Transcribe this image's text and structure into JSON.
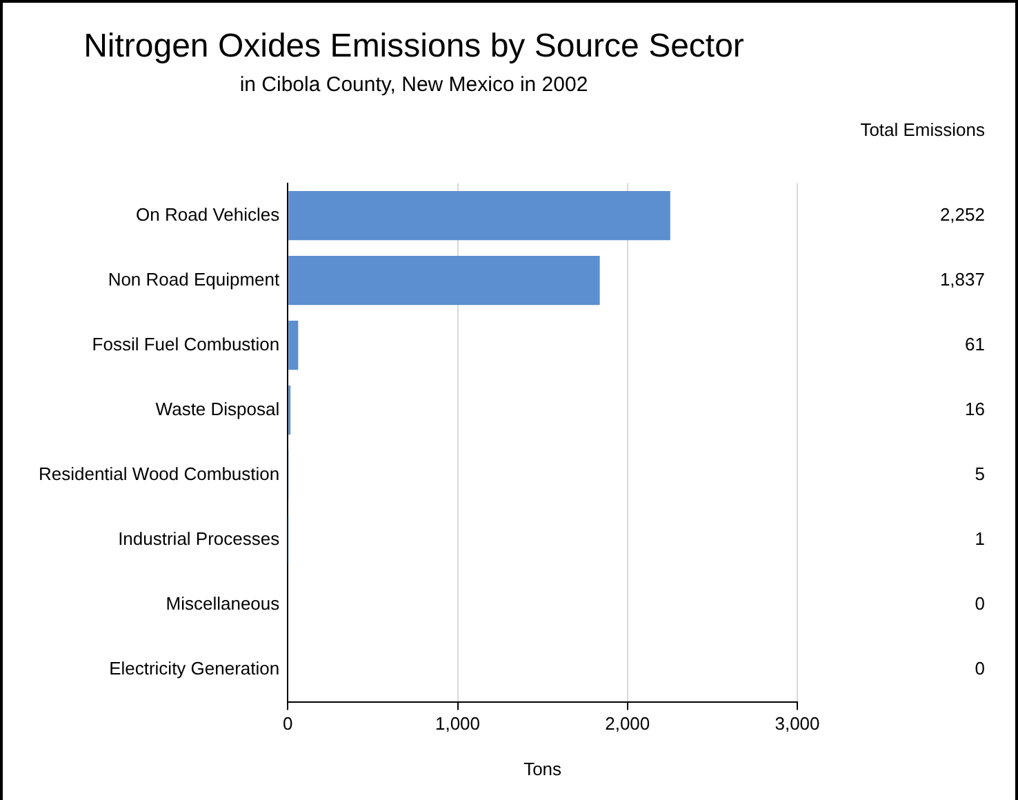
{
  "chart_data": {
    "type": "bar",
    "orientation": "horizontal",
    "title": "Nitrogen Oxides Emissions by Source Sector",
    "subtitle": "in Cibola County, New Mexico in 2002",
    "xlabel": "Tons",
    "categories": [
      "On Road Vehicles",
      "Non Road Equipment",
      "Fossil Fuel Combustion",
      "Waste Disposal",
      "Residential Wood Combustion",
      "Industrial Processes",
      "Miscellaneous",
      "Electricity Generation"
    ],
    "values": [
      2252,
      1837,
      61,
      16,
      5,
      1,
      0,
      0
    ],
    "value_labels": [
      "2,252",
      "1,837",
      "61",
      "16",
      "5",
      "1",
      "0",
      "0"
    ],
    "color": "#5b8fcf",
    "xlim": [
      0,
      3000
    ],
    "xticks": [
      0,
      {
        "value": 1000,
        "label": "1,000"
      },
      {
        "value": 2000,
        "label": "2,000"
      },
      {
        "value": 3000,
        "label": "3,000"
      }
    ],
    "grid": "x",
    "legend": false,
    "annotations": [
      "Total Emissions"
    ]
  }
}
